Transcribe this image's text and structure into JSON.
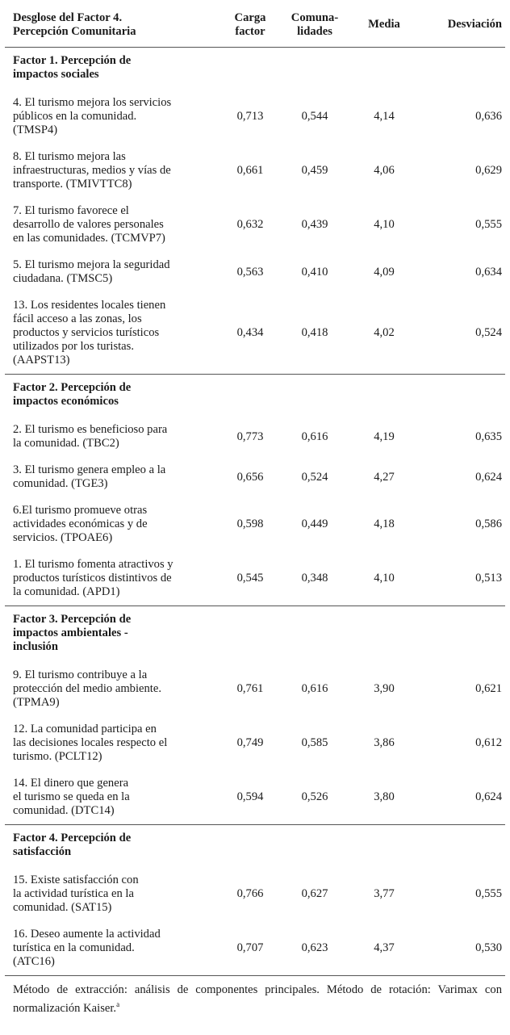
{
  "header": {
    "item": [
      "Desglose del Factor 4.",
      "Percepción Comunitaria"
    ],
    "carga": [
      "Carga",
      "factor"
    ],
    "comunalidades": [
      "Comuna-",
      "lidades"
    ],
    "media": "Media",
    "desviacion": "Desviación"
  },
  "factors": [
    {
      "title": [
        "Factor 1. Percepción de",
        "impactos sociales"
      ],
      "items": [
        {
          "text": [
            "4. El turismo mejora los servicios",
            "públicos en la comunidad.",
            "(TMSP4)"
          ],
          "carga": "0,713",
          "comunalidad": "0,544",
          "media": "4,14",
          "desviacion": "0,636"
        },
        {
          "text": [
            "8. El turismo mejora las",
            "infraestructuras, medios y vías de",
            "transporte. (TMIVTTC8)"
          ],
          "carga": "0,661",
          "comunalidad": "0,459",
          "media": "4,06",
          "desviacion": "0,629"
        },
        {
          "text": [
            "7. El turismo favorece el",
            "desarrollo de valores personales",
            "en las comunidades. (TCMVP7)"
          ],
          "carga": "0,632",
          "comunalidad": "0,439",
          "media": "4,10",
          "desviacion": "0,555"
        },
        {
          "text": [
            "5. El turismo mejora la seguridad",
            "ciudadana. (TMSC5)"
          ],
          "carga": "0,563",
          "comunalidad": "0,410",
          "media": "4,09",
          "desviacion": "0,634"
        },
        {
          "text": [
            "13. Los residentes locales tienen",
            "fácil acceso a las zonas, los",
            "productos y servicios turísticos",
            "utilizados por los turistas.",
            "(AAPST13)"
          ],
          "carga": "0,434",
          "comunalidad": "0,418",
          "media": "4,02",
          "desviacion": "0,524"
        }
      ]
    },
    {
      "title": [
        "Factor 2. Percepción de",
        "impactos económicos"
      ],
      "items": [
        {
          "text": [
            "2. El turismo es beneficioso para",
            "la comunidad. (TBC2)"
          ],
          "carga": "0,773",
          "comunalidad": "0,616",
          "media": "4,19",
          "desviacion": "0,635"
        },
        {
          "text": [
            "3. El turismo genera empleo a la",
            "comunidad. (TGE3)"
          ],
          "carga": "0,656",
          "comunalidad": "0,524",
          "media": "4,27",
          "desviacion": "0,624"
        },
        {
          "text": [
            "6.El turismo promueve otras",
            "actividades económicas y de",
            "servicios. (TPOAE6)"
          ],
          "carga": "0,598",
          "comunalidad": "0,449",
          "media": "4,18",
          "desviacion": "0,586"
        },
        {
          "text": [
            "1. El turismo fomenta atractivos y",
            "productos turísticos distintivos de",
            "la comunidad. (APD1)"
          ],
          "carga": "0,545",
          "comunalidad": "0,348",
          "media": "4,10",
          "desviacion": "0,513"
        }
      ]
    },
    {
      "title": [
        "Factor 3. Percepción de",
        "impactos ambientales -",
        "inclusión"
      ],
      "items": [
        {
          "text": [
            "9. El turismo contribuye a la",
            "protección del medio ambiente.",
            "(TPMA9)"
          ],
          "carga": "0,761",
          "comunalidad": "0,616",
          "media": "3,90",
          "desviacion": "0,621"
        },
        {
          "text": [
            "12. La comunidad participa en",
            "las decisiones locales respecto el",
            "turismo. (PCLT12)"
          ],
          "carga": "0,749",
          "comunalidad": "0,585",
          "media": "3,86",
          "desviacion": "0,612"
        },
        {
          "text": [
            "14. El dinero que genera",
            "el turismo se queda en la",
            "comunidad. (DTC14)"
          ],
          "carga": "0,594",
          "comunalidad": "0,526",
          "media": "3,80",
          "desviacion": "0,624"
        }
      ]
    },
    {
      "title": [
        "Factor 4. Percepción de",
        "satisfacción"
      ],
      "items": [
        {
          "text": [
            "15. Existe satisfacción con",
            "la actividad turística en la",
            "comunidad. (SAT15)"
          ],
          "carga": "0,766",
          "comunalidad": "0,627",
          "media": "3,77",
          "desviacion": "0,555"
        },
        {
          "text": [
            "16. Deseo aumente la actividad",
            "turística en la comunidad.",
            "(ATC16)"
          ],
          "carga": "0,707",
          "comunalidad": "0,623",
          "media": "4,37",
          "desviacion": "0,530"
        }
      ]
    }
  ],
  "note": {
    "text": "Método de extracción: análisis de componentes principales. Método de rotación: Varimax con normalización Kaiser.",
    "superscript": "a"
  }
}
